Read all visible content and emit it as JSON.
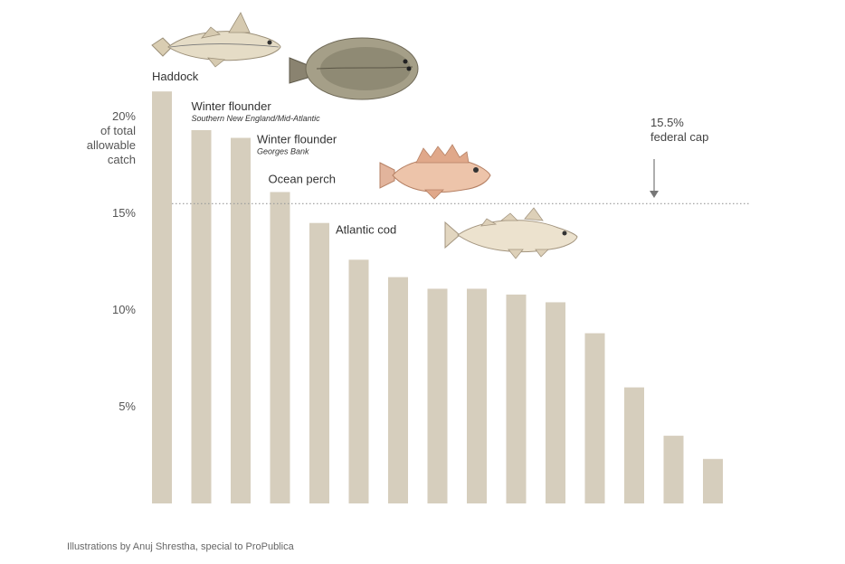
{
  "chart_data": {
    "type": "bar",
    "ylabel": [
      "20%",
      "of total",
      "allowable",
      "catch"
    ],
    "ylim": [
      0,
      25
    ],
    "yticks": [
      {
        "value": 5,
        "label": "5%"
      },
      {
        "value": 10,
        "label": "10%"
      },
      {
        "value": 15,
        "label": "15%"
      },
      {
        "value": 20,
        "label": "20%"
      }
    ],
    "values": [
      21.3,
      19.3,
      18.9,
      16.1,
      14.5,
      12.6,
      11.7,
      11.1,
      11.1,
      10.8,
      10.4,
      8.8,
      6.0,
      3.5,
      2.3
    ],
    "bar_labels": [
      {
        "index": 0,
        "name": "Haddock",
        "sub": ""
      },
      {
        "index": 1,
        "name": "Winter flounder",
        "sub": "Southern New England/Mid-Atlantic"
      },
      {
        "index": 2,
        "name": "Winter flounder",
        "sub": "Georges Bank"
      },
      {
        "index": 3,
        "name": "Ocean perch",
        "sub": ""
      },
      {
        "index": 4,
        "name": "Atlantic cod",
        "sub": ""
      }
    ],
    "reference_line": {
      "value": 15.5,
      "label": [
        "15.5%",
        "federal cap"
      ]
    },
    "grid": false,
    "colors": {
      "bar": "#d6cebd",
      "reference": "#999999"
    }
  },
  "illustrations": [
    "haddock-icon",
    "flounder-icon",
    "ocean-perch-icon",
    "atlantic-cod-icon"
  ],
  "credit": "Illustrations by Anuj Shrestha, special to ProPublica"
}
